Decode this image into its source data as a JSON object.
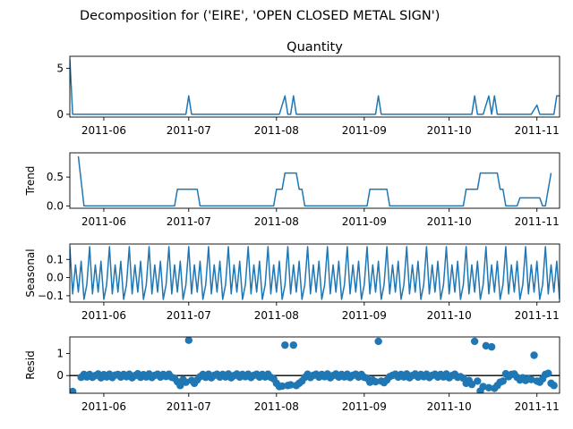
{
  "figure_title": "Decomposition for ('EIRE', 'OPEN CLOSED METAL SIGN')",
  "line_color": "#1f77b4",
  "x_axis": {
    "type": "date",
    "range": [
      "2011-05-20",
      "2011-11-09"
    ],
    "tick_labels": [
      "2011-06",
      "2011-07",
      "2011-08",
      "2011-09",
      "2011-10",
      "2011-11"
    ],
    "tick_dates": [
      "2011-06-01",
      "2011-07-01",
      "2011-08-01",
      "2011-09-01",
      "2011-10-01",
      "2011-11-01"
    ]
  },
  "chart_data": [
    {
      "type": "line",
      "title": "Quantity",
      "ylabel": "",
      "ylim": [
        -0.3,
        6.3
      ],
      "yticks": [
        0,
        5
      ],
      "grid": false,
      "series": [
        {
          "points": [
            [
              "2011-05-20",
              6
            ],
            [
              "2011-05-21",
              0
            ],
            [
              "2011-06-30",
              0
            ],
            [
              "2011-07-01",
              2
            ],
            [
              "2011-07-02",
              0
            ],
            [
              "2011-08-02",
              0
            ],
            [
              "2011-08-04",
              2
            ],
            [
              "2011-08-05",
              0
            ],
            [
              "2011-08-06",
              0
            ],
            [
              "2011-08-07",
              2
            ],
            [
              "2011-08-08",
              0
            ],
            [
              "2011-09-05",
              0
            ],
            [
              "2011-09-06",
              2
            ],
            [
              "2011-09-07",
              0
            ],
            [
              "2011-10-09",
              0
            ],
            [
              "2011-10-10",
              2
            ],
            [
              "2011-10-11",
              0
            ],
            [
              "2011-10-13",
              0
            ],
            [
              "2011-10-15",
              2
            ],
            [
              "2011-10-16",
              0
            ],
            [
              "2011-10-17",
              2
            ],
            [
              "2011-10-18",
              0
            ],
            [
              "2011-10-30",
              0
            ],
            [
              "2011-11-01",
              1
            ],
            [
              "2011-11-02",
              0
            ],
            [
              "2011-11-07",
              0
            ],
            [
              "2011-11-08",
              2
            ],
            [
              "2011-11-09",
              2
            ]
          ]
        }
      ]
    },
    {
      "type": "line",
      "title": "",
      "ylabel": "Trend",
      "ylim": [
        -0.04,
        0.92
      ],
      "yticks": [
        0.0,
        0.5
      ],
      "tick_labels": [
        "0.0",
        "0.5"
      ],
      "grid": false,
      "series": [
        {
          "points": [
            [
              "2011-05-23",
              0.86
            ],
            [
              "2011-05-24",
              0.43
            ],
            [
              "2011-05-25",
              0.0
            ],
            [
              "2011-06-26",
              0.0
            ],
            [
              "2011-06-27",
              0.29
            ],
            [
              "2011-07-04",
              0.29
            ],
            [
              "2011-07-05",
              0.0
            ],
            [
              "2011-07-31",
              0.0
            ],
            [
              "2011-08-01",
              0.29
            ],
            [
              "2011-08-03",
              0.29
            ],
            [
              "2011-08-04",
              0.57
            ],
            [
              "2011-08-08",
              0.57
            ],
            [
              "2011-08-09",
              0.29
            ],
            [
              "2011-08-10",
              0.29
            ],
            [
              "2011-08-11",
              0.0
            ],
            [
              "2011-09-02",
              0.0
            ],
            [
              "2011-09-03",
              0.29
            ],
            [
              "2011-09-09",
              0.29
            ],
            [
              "2011-09-10",
              0.0
            ],
            [
              "2011-10-06",
              0.0
            ],
            [
              "2011-10-07",
              0.29
            ],
            [
              "2011-10-11",
              0.29
            ],
            [
              "2011-10-12",
              0.57
            ],
            [
              "2011-10-18",
              0.57
            ],
            [
              "2011-10-19",
              0.29
            ],
            [
              "2011-10-20",
              0.29
            ],
            [
              "2011-10-21",
              0.0
            ],
            [
              "2011-10-25",
              0.0
            ],
            [
              "2011-10-26",
              0.14
            ],
            [
              "2011-11-02",
              0.14
            ],
            [
              "2011-11-03",
              0.0
            ],
            [
              "2011-11-04",
              0.0
            ],
            [
              "2011-11-05",
              0.29
            ],
            [
              "2011-11-06",
              0.57
            ]
          ]
        }
      ]
    },
    {
      "type": "line",
      "title": "",
      "ylabel": "Seasonal",
      "ylim": [
        -0.135,
        0.185
      ],
      "yticks": [
        -0.1,
        0.0,
        0.1
      ],
      "tick_labels": [
        "−0.1",
        "0.0",
        "0.1"
      ],
      "grid": false,
      "period": 7,
      "seasonal_pattern": [
        0.17,
        -0.09,
        0.07,
        -0.08,
        0.09,
        -0.12,
        -0.04
      ],
      "series_start": "2011-05-20",
      "series_end": "2011-11-09"
    },
    {
      "type": "scatter",
      "title": "",
      "ylabel": "Resid",
      "ylim": [
        -0.8,
        1.75
      ],
      "yticks": [
        0,
        1
      ],
      "grid": false,
      "baseline": 0,
      "points": [
        [
          "2011-05-21",
          -0.72
        ],
        [
          "2011-05-24",
          -0.08
        ],
        [
          "2011-05-25",
          0.05
        ],
        [
          "2011-05-26",
          -0.06
        ],
        [
          "2011-05-27",
          0.05
        ],
        [
          "2011-05-28",
          -0.08
        ],
        [
          "2011-05-29",
          0.0
        ],
        [
          "2011-05-30",
          0.07
        ],
        [
          "2011-05-31",
          -0.1
        ],
        [
          "2011-06-01",
          0.04
        ],
        [
          "2011-06-02",
          -0.06
        ],
        [
          "2011-06-03",
          0.06
        ],
        [
          "2011-06-04",
          -0.09
        ],
        [
          "2011-06-05",
          0.02
        ],
        [
          "2011-06-06",
          0.05
        ],
        [
          "2011-06-07",
          -0.07
        ],
        [
          "2011-06-08",
          0.05
        ],
        [
          "2011-06-09",
          -0.05
        ],
        [
          "2011-06-10",
          0.06
        ],
        [
          "2011-06-11",
          -0.1
        ],
        [
          "2011-06-12",
          0.0
        ],
        [
          "2011-06-13",
          0.08
        ],
        [
          "2011-06-14",
          -0.08
        ],
        [
          "2011-06-15",
          0.04
        ],
        [
          "2011-06-16",
          -0.06
        ],
        [
          "2011-06-17",
          0.07
        ],
        [
          "2011-06-18",
          -0.09
        ],
        [
          "2011-06-19",
          0.01
        ],
        [
          "2011-06-20",
          0.06
        ],
        [
          "2011-06-21",
          -0.07
        ],
        [
          "2011-06-22",
          0.05
        ],
        [
          "2011-06-23",
          -0.04
        ],
        [
          "2011-06-24",
          0.06
        ],
        [
          "2011-06-25",
          -0.08
        ],
        [
          "2011-06-26",
          -0.12
        ],
        [
          "2011-06-27",
          -0.28
        ],
        [
          "2011-06-28",
          -0.45
        ],
        [
          "2011-06-29",
          -0.18
        ],
        [
          "2011-06-30",
          -0.3
        ],
        [
          "2011-07-01",
          1.6
        ],
        [
          "2011-07-02",
          -0.22
        ],
        [
          "2011-07-03",
          -0.35
        ],
        [
          "2011-07-04",
          -0.2
        ],
        [
          "2011-07-05",
          -0.05
        ],
        [
          "2011-07-06",
          0.05
        ],
        [
          "2011-07-07",
          -0.08
        ],
        [
          "2011-07-08",
          0.06
        ],
        [
          "2011-07-09",
          -0.1
        ],
        [
          "2011-07-10",
          0.01
        ],
        [
          "2011-07-11",
          0.06
        ],
        [
          "2011-07-12",
          -0.07
        ],
        [
          "2011-07-13",
          0.05
        ],
        [
          "2011-07-14",
          -0.06
        ],
        [
          "2011-07-15",
          0.07
        ],
        [
          "2011-07-16",
          -0.1
        ],
        [
          "2011-07-17",
          0.0
        ],
        [
          "2011-07-18",
          0.07
        ],
        [
          "2011-07-19",
          -0.07
        ],
        [
          "2011-07-20",
          0.05
        ],
        [
          "2011-07-21",
          -0.05
        ],
        [
          "2011-07-22",
          0.06
        ],
        [
          "2011-07-23",
          -0.09
        ],
        [
          "2011-07-24",
          0.01
        ],
        [
          "2011-07-25",
          0.06
        ],
        [
          "2011-07-26",
          -0.07
        ],
        [
          "2011-07-27",
          0.05
        ],
        [
          "2011-07-28",
          -0.06
        ],
        [
          "2011-07-29",
          0.06
        ],
        [
          "2011-07-30",
          -0.08
        ],
        [
          "2011-07-31",
          -0.15
        ],
        [
          "2011-08-01",
          -0.35
        ],
        [
          "2011-08-02",
          -0.5
        ],
        [
          "2011-08-03",
          -0.48
        ],
        [
          "2011-08-04",
          1.38
        ],
        [
          "2011-08-05",
          -0.45
        ],
        [
          "2011-08-06",
          -0.42
        ],
        [
          "2011-08-07",
          1.38
        ],
        [
          "2011-08-08",
          -0.45
        ],
        [
          "2011-08-09",
          -0.35
        ],
        [
          "2011-08-10",
          -0.25
        ],
        [
          "2011-08-11",
          -0.08
        ],
        [
          "2011-08-12",
          0.06
        ],
        [
          "2011-08-13",
          -0.09
        ],
        [
          "2011-08-14",
          0.01
        ],
        [
          "2011-08-15",
          0.06
        ],
        [
          "2011-08-16",
          -0.07
        ],
        [
          "2011-08-17",
          0.05
        ],
        [
          "2011-08-18",
          -0.05
        ],
        [
          "2011-08-19",
          0.07
        ],
        [
          "2011-08-20",
          -0.1
        ],
        [
          "2011-08-21",
          0.0
        ],
        [
          "2011-08-22",
          0.07
        ],
        [
          "2011-08-23",
          -0.07
        ],
        [
          "2011-08-24",
          0.05
        ],
        [
          "2011-08-25",
          -0.06
        ],
        [
          "2011-08-26",
          0.06
        ],
        [
          "2011-08-27",
          -0.09
        ],
        [
          "2011-08-28",
          0.01
        ],
        [
          "2011-08-29",
          0.06
        ],
        [
          "2011-08-30",
          -0.07
        ],
        [
          "2011-08-31",
          0.05
        ],
        [
          "2011-09-01",
          -0.08
        ],
        [
          "2011-09-02",
          -0.12
        ],
        [
          "2011-09-03",
          -0.3
        ],
        [
          "2011-09-04",
          -0.2
        ],
        [
          "2011-09-05",
          -0.28
        ],
        [
          "2011-09-06",
          1.55
        ],
        [
          "2011-09-07",
          -0.25
        ],
        [
          "2011-09-08",
          -0.32
        ],
        [
          "2011-09-09",
          -0.2
        ],
        [
          "2011-09-10",
          -0.05
        ],
        [
          "2011-09-11",
          0.01
        ],
        [
          "2011-09-12",
          0.06
        ],
        [
          "2011-09-13",
          -0.07
        ],
        [
          "2011-09-14",
          0.05
        ],
        [
          "2011-09-15",
          -0.06
        ],
        [
          "2011-09-16",
          0.07
        ],
        [
          "2011-09-17",
          -0.1
        ],
        [
          "2011-09-18",
          0.0
        ],
        [
          "2011-09-19",
          0.07
        ],
        [
          "2011-09-20",
          -0.07
        ],
        [
          "2011-09-21",
          0.05
        ],
        [
          "2011-09-22",
          -0.05
        ],
        [
          "2011-09-23",
          0.06
        ],
        [
          "2011-09-24",
          -0.09
        ],
        [
          "2011-09-25",
          0.01
        ],
        [
          "2011-09-26",
          0.06
        ],
        [
          "2011-09-27",
          -0.07
        ],
        [
          "2011-09-28",
          0.05
        ],
        [
          "2011-09-29",
          -0.06
        ],
        [
          "2011-09-30",
          0.07
        ],
        [
          "2011-10-01",
          -0.1
        ],
        [
          "2011-10-02",
          0.0
        ],
        [
          "2011-10-03",
          0.06
        ],
        [
          "2011-10-04",
          -0.08
        ],
        [
          "2011-10-05",
          -0.05
        ],
        [
          "2011-10-06",
          -0.12
        ],
        [
          "2011-10-07",
          -0.35
        ],
        [
          "2011-10-08",
          -0.22
        ],
        [
          "2011-10-09",
          -0.4
        ],
        [
          "2011-10-10",
          1.55
        ],
        [
          "2011-10-11",
          -0.25
        ],
        [
          "2011-10-12",
          -0.7
        ],
        [
          "2011-10-13",
          -0.5
        ],
        [
          "2011-10-14",
          1.35
        ],
        [
          "2011-10-15",
          -0.55
        ],
        [
          "2011-10-16",
          1.3
        ],
        [
          "2011-10-17",
          -0.58
        ],
        [
          "2011-10-18",
          -0.45
        ],
        [
          "2011-10-19",
          -0.3
        ],
        [
          "2011-10-20",
          -0.25
        ],
        [
          "2011-10-21",
          0.08
        ],
        [
          "2011-10-22",
          -0.05
        ],
        [
          "2011-10-23",
          0.05
        ],
        [
          "2011-10-24",
          0.07
        ],
        [
          "2011-10-25",
          -0.08
        ],
        [
          "2011-10-26",
          -0.2
        ],
        [
          "2011-10-27",
          -0.1
        ],
        [
          "2011-10-28",
          -0.22
        ],
        [
          "2011-10-29",
          -0.15
        ],
        [
          "2011-10-30",
          -0.18
        ],
        [
          "2011-10-31",
          0.92
        ],
        [
          "2011-11-01",
          -0.25
        ],
        [
          "2011-11-02",
          -0.3
        ],
        [
          "2011-11-03",
          -0.15
        ],
        [
          "2011-11-04",
          0.05
        ],
        [
          "2011-11-05",
          0.1
        ],
        [
          "2011-11-06",
          -0.35
        ],
        [
          "2011-11-07",
          -0.45
        ]
      ]
    }
  ]
}
